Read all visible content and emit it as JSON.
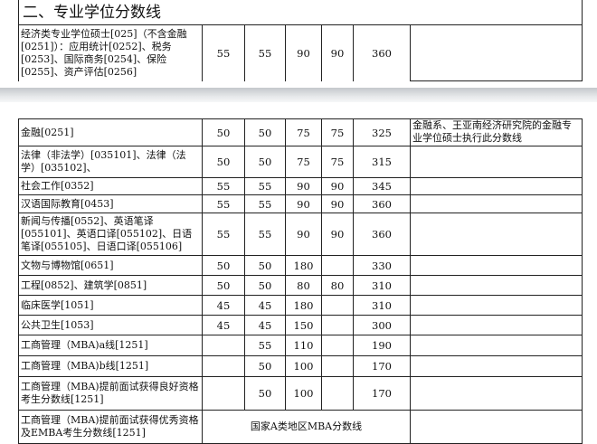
{
  "section_title": "二、专业学位分数线",
  "top_row": {
    "name": "经济类专业学位硕士[025]（不含金融[0251]）：应用统计[0252]、税务[0253]、国际商务[0254]、保险[0255]、资产评估[0256]",
    "scores": [
      "55",
      "55",
      "90",
      "90",
      "360"
    ],
    "note": ""
  },
  "rows": [
    {
      "name": "金融[0251]",
      "scores": [
        "50",
        "50",
        "75",
        "75",
        "325"
      ],
      "note": "金融系、王亚南经济研究院的金融专业学位硕士执行此分数线"
    },
    {
      "name": "法律（非法学）[035101]、法律（法学）[035102]、",
      "scores": [
        "50",
        "50",
        "75",
        "75",
        "315"
      ],
      "note": ""
    },
    {
      "name": "社会工作[0352]",
      "scores": [
        "55",
        "55",
        "90",
        "90",
        "345"
      ],
      "note": ""
    },
    {
      "name": "汉语国际教育[0453]",
      "scores": [
        "55",
        "55",
        "90",
        "90",
        "360"
      ],
      "note": ""
    },
    {
      "name": "新闻与传播[0552]、英语笔译[055101]、英语口译[055102]、日语笔译[055105]、日语口译[055106]",
      "scores": [
        "55",
        "55",
        "90",
        "90",
        "360"
      ],
      "note": ""
    },
    {
      "name": "文物与博物馆[0651]",
      "scores": [
        "50",
        "50",
        "180",
        "",
        "330"
      ],
      "note": ""
    },
    {
      "name": "工程[0852]、建筑学[0851]",
      "scores": [
        "50",
        "50",
        "80",
        "80",
        "310"
      ],
      "note": ""
    },
    {
      "name": "临床医学[1051]",
      "scores": [
        "45",
        "45",
        "180",
        "",
        "310"
      ],
      "note": ""
    },
    {
      "name": "公共卫生[1053]",
      "scores": [
        "45",
        "45",
        "150",
        "",
        "300"
      ],
      "note": ""
    },
    {
      "name": "工商管理（MBA)a线[1251]",
      "scores": [
        "",
        "55",
        "110",
        "",
        "190"
      ],
      "note": ""
    },
    {
      "name": "工商管理（MBA)b线[1251]",
      "scores": [
        "",
        "50",
        "100",
        "",
        "170"
      ],
      "note": ""
    },
    {
      "name": "工商管理（MBA)提前面试获得良好资格考生分数线[1251]",
      "scores": [
        "",
        "50",
        "100",
        "",
        "170"
      ],
      "note": ""
    },
    {
      "name": "工商管理（MBA)提前面试获得优秀资格及EMBA考生分数线[1251]",
      "merged": "国家A类地区MBA分数线",
      "note": ""
    }
  ]
}
